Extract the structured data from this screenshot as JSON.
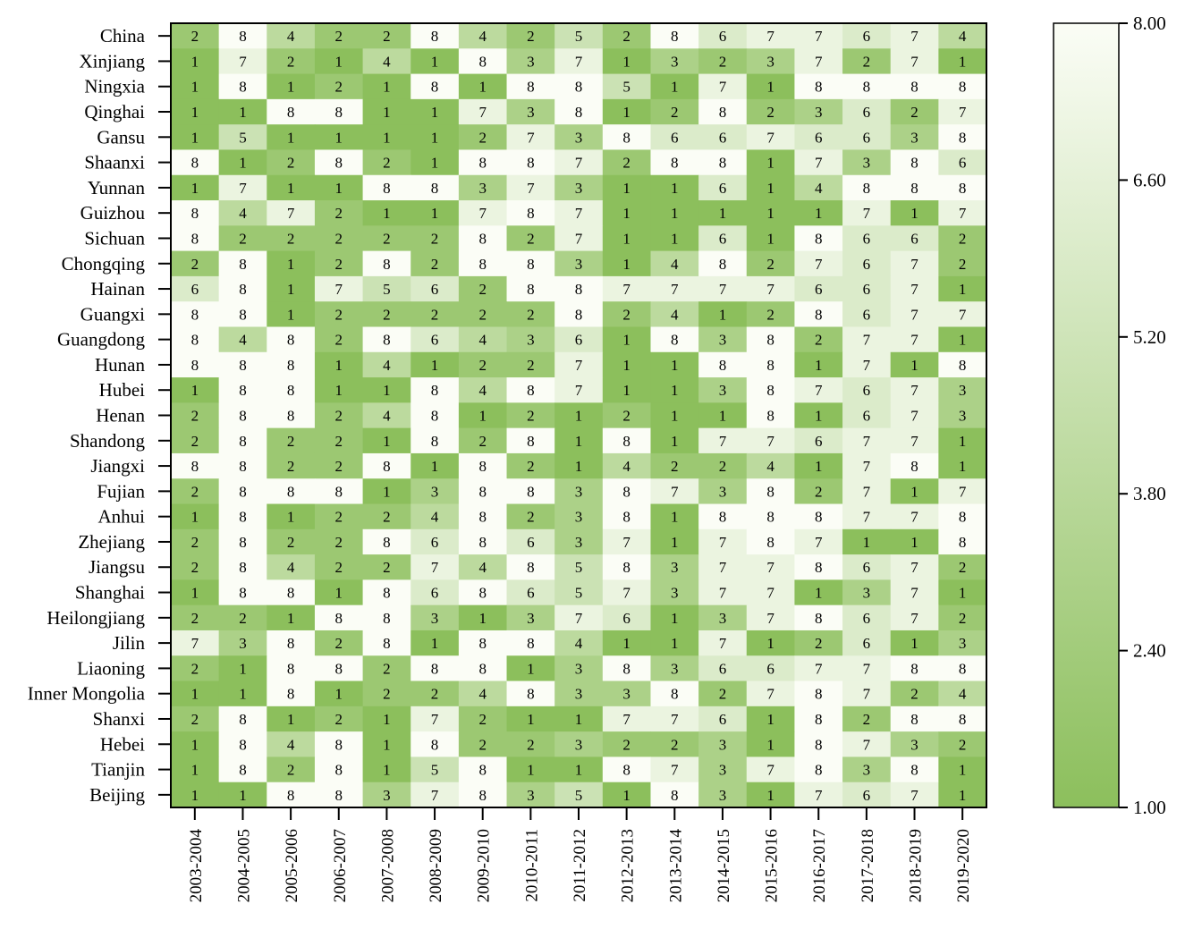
{
  "chart_data": {
    "type": "heatmap",
    "title": "",
    "xlabel": "",
    "ylabel": "",
    "rows": [
      "China",
      "Xinjiang",
      "Ningxia",
      "Qinghai",
      "Gansu",
      "Shaanxi",
      "Yunnan",
      "Guizhou",
      "Sichuan",
      "Chongqing",
      "Hainan",
      "Guangxi",
      "Guangdong",
      "Hunan",
      "Hubei",
      "Henan",
      "Shandong",
      "Jiangxi",
      "Fujian",
      "Anhui",
      "Zhejiang",
      "Jiangsu",
      "Shanghai",
      "Heilongjiang",
      "Jilin",
      "Liaoning",
      "Inner Mongolia",
      "Shanxi",
      "Hebei",
      "Tianjin",
      "Beijing"
    ],
    "columns": [
      "2003-2004",
      "2004-2005",
      "2005-2006",
      "2006-2007",
      "2007-2008",
      "2008-2009",
      "2009-2010",
      "2010-2011",
      "2011-2012",
      "2012-2013",
      "2013-2014",
      "2014-2015",
      "2015-2016",
      "2016-2017",
      "2017-2018",
      "2018-2019",
      "2019-2020"
    ],
    "values": [
      [
        2,
        8,
        4,
        2,
        2,
        8,
        4,
        2,
        5,
        2,
        8,
        6,
        7,
        7,
        6,
        7,
        4
      ],
      [
        1,
        7,
        2,
        1,
        4,
        1,
        8,
        3,
        7,
        1,
        3,
        2,
        3,
        7,
        2,
        7,
        1
      ],
      [
        1,
        8,
        1,
        2,
        1,
        8,
        1,
        8,
        8,
        5,
        1,
        7,
        1,
        8,
        8,
        8,
        8
      ],
      [
        1,
        1,
        8,
        8,
        1,
        1,
        7,
        3,
        8,
        1,
        2,
        8,
        2,
        3,
        6,
        2,
        7
      ],
      [
        1,
        5,
        1,
        1,
        1,
        1,
        2,
        7,
        3,
        8,
        6,
        6,
        7,
        6,
        6,
        3,
        8
      ],
      [
        8,
        1,
        2,
        8,
        2,
        1,
        8,
        8,
        7,
        2,
        8,
        8,
        1,
        7,
        3,
        8,
        6
      ],
      [
        1,
        7,
        1,
        1,
        8,
        8,
        3,
        7,
        3,
        1,
        1,
        6,
        1,
        4,
        8,
        8,
        8
      ],
      [
        8,
        4,
        7,
        2,
        1,
        1,
        7,
        8,
        7,
        1,
        1,
        1,
        1,
        1,
        7,
        1,
        7
      ],
      [
        8,
        2,
        2,
        2,
        2,
        2,
        8,
        2,
        7,
        1,
        1,
        6,
        1,
        8,
        6,
        6,
        2
      ],
      [
        2,
        8,
        1,
        2,
        8,
        2,
        8,
        8,
        3,
        1,
        4,
        8,
        2,
        7,
        6,
        7,
        2
      ],
      [
        6,
        8,
        1,
        7,
        5,
        6,
        2,
        8,
        8,
        7,
        7,
        7,
        7,
        6,
        6,
        7,
        1
      ],
      [
        8,
        8,
        1,
        2,
        2,
        2,
        2,
        2,
        8,
        2,
        4,
        1,
        2,
        8,
        6,
        7,
        7
      ],
      [
        8,
        4,
        8,
        2,
        8,
        6,
        4,
        3,
        6,
        1,
        8,
        3,
        8,
        2,
        7,
        7,
        1
      ],
      [
        8,
        8,
        8,
        1,
        4,
        1,
        2,
        2,
        7,
        1,
        1,
        8,
        8,
        1,
        7,
        1,
        8
      ],
      [
        1,
        8,
        8,
        1,
        1,
        8,
        4,
        8,
        7,
        1,
        1,
        3,
        8,
        7,
        6,
        7,
        3
      ],
      [
        2,
        8,
        8,
        2,
        4,
        8,
        1,
        2,
        1,
        2,
        1,
        1,
        8,
        1,
        6,
        7,
        3
      ],
      [
        2,
        8,
        2,
        2,
        1,
        8,
        2,
        8,
        1,
        8,
        1,
        7,
        7,
        6,
        7,
        7,
        1
      ],
      [
        8,
        8,
        2,
        2,
        8,
        1,
        8,
        2,
        1,
        4,
        2,
        2,
        4,
        1,
        7,
        8,
        1
      ],
      [
        2,
        8,
        8,
        8,
        1,
        3,
        8,
        8,
        3,
        8,
        7,
        3,
        8,
        2,
        7,
        1,
        7
      ],
      [
        1,
        8,
        1,
        2,
        2,
        4,
        8,
        2,
        3,
        8,
        1,
        8,
        8,
        8,
        7,
        7,
        8
      ],
      [
        2,
        8,
        2,
        2,
        8,
        6,
        8,
        6,
        3,
        7,
        1,
        7,
        8,
        7,
        1,
        1,
        8
      ],
      [
        2,
        8,
        4,
        2,
        2,
        7,
        4,
        8,
        5,
        8,
        3,
        7,
        7,
        8,
        6,
        7,
        2
      ],
      [
        1,
        8,
        8,
        1,
        8,
        6,
        8,
        6,
        5,
        7,
        3,
        7,
        7,
        1,
        3,
        7,
        1
      ],
      [
        2,
        2,
        1,
        8,
        8,
        3,
        1,
        3,
        7,
        6,
        1,
        3,
        7,
        8,
        6,
        7,
        2
      ],
      [
        7,
        3,
        8,
        2,
        8,
        1,
        8,
        8,
        4,
        1,
        1,
        7,
        1,
        2,
        6,
        1,
        3
      ],
      [
        2,
        1,
        8,
        8,
        2,
        8,
        8,
        1,
        3,
        8,
        3,
        6,
        6,
        7,
        7,
        8,
        8
      ],
      [
        1,
        1,
        8,
        1,
        2,
        2,
        4,
        8,
        3,
        3,
        8,
        2,
        7,
        8,
        7,
        2,
        4
      ],
      [
        2,
        8,
        1,
        2,
        1,
        7,
        2,
        1,
        1,
        7,
        7,
        6,
        1,
        8,
        2,
        8,
        8
      ],
      [
        1,
        8,
        4,
        8,
        1,
        8,
        2,
        2,
        3,
        2,
        2,
        3,
        1,
        8,
        7,
        3,
        2
      ],
      [
        1,
        8,
        2,
        8,
        1,
        5,
        8,
        1,
        1,
        8,
        7,
        3,
        7,
        8,
        3,
        8,
        1
      ],
      [
        1,
        1,
        8,
        8,
        3,
        7,
        8,
        3,
        5,
        1,
        8,
        3,
        1,
        7,
        6,
        7,
        1
      ]
    ],
    "colorbar": {
      "min": 1.0,
      "max": 8.0,
      "ticks": [
        "8.00",
        "6.60",
        "5.20",
        "3.80",
        "2.40",
        "1.00"
      ],
      "color_low": "#8cbf5c",
      "color_high": "#fbfdf6"
    },
    "legend_position": "right"
  }
}
